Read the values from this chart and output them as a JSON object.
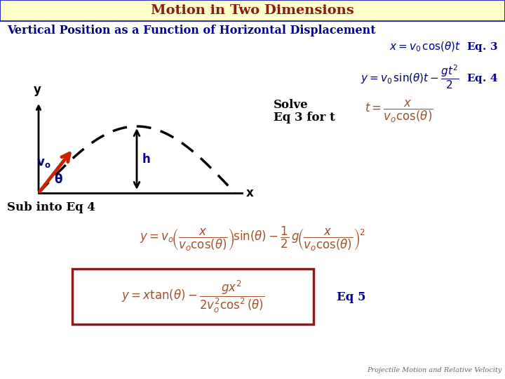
{
  "title": "Motion in Two Dimensions",
  "subtitle": "Vertical Position as a Function of Horizontal Displacement",
  "title_bg": "#ffffcc",
  "title_border": "#3333AA",
  "title_color": "#8B0000",
  "subtitle_color": "#00008B",
  "dark_blue": "#00008B",
  "dark_red": "#8B1A1A",
  "brown_red": "#A0522D",
  "orange_red": "#CC2200",
  "black": "#000000",
  "bg_color": "#FFFFFF",
  "footer": "Projectile Motion and Relative Velocity"
}
